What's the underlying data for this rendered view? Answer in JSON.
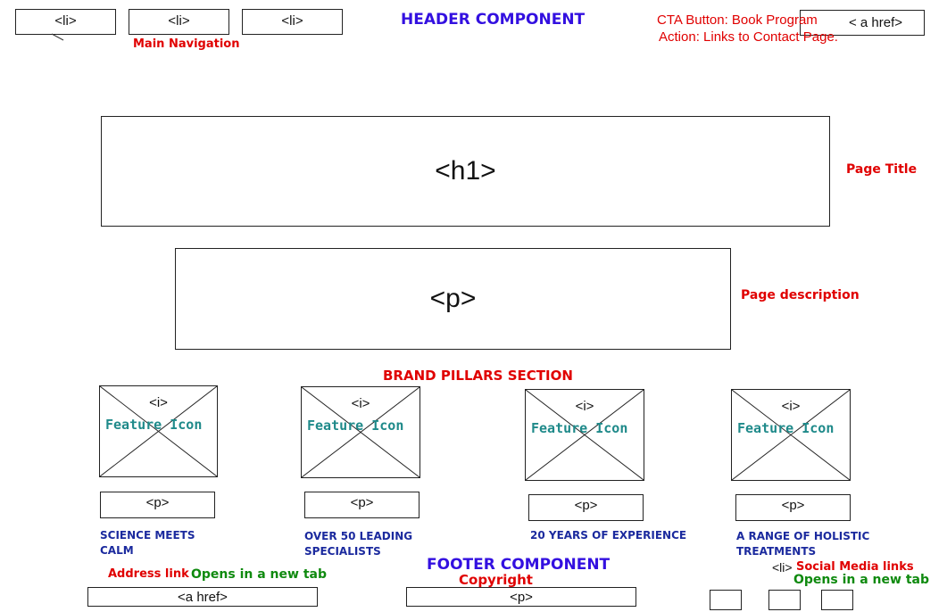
{
  "header": {
    "title": "HEADER COMPONENT",
    "nav_items": [
      "<li>",
      "<li>",
      "<li>"
    ],
    "nav_note": "Main Navigation",
    "cta_note_line1": "CTA Button: Book Program",
    "cta_note_line2": "Action: Links to Contact Page.",
    "cta_tag": "< a href>"
  },
  "title_block": {
    "tag": "<h1>",
    "note": "Page Title"
  },
  "description_block": {
    "tag": "<p>",
    "note": "Page description"
  },
  "pillars": {
    "title": "BRAND PILLARS SECTION",
    "items": [
      {
        "icon_tag": "<i>",
        "icon_label": "Feature Icon",
        "p_tag": "<p>",
        "text": "SCIENCE MEETS CALM"
      },
      {
        "icon_tag": "<i>",
        "icon_label": "Feature Icon",
        "p_tag": "<p>",
        "text": "OVER 50 LEADING SPECIALISTS"
      },
      {
        "icon_tag": "<i>",
        "icon_label": "Feature Icon",
        "p_tag": "<p>",
        "text": "20 YEARS OF EXPERIENCE"
      },
      {
        "icon_tag": "<i>",
        "icon_label": "Feature Icon",
        "p_tag": "<p>",
        "text": "A RANGE OF HOLISTIC TREATMENTS"
      }
    ]
  },
  "footer": {
    "title": "FOOTER COMPONENT",
    "address_note": "Address link",
    "address_new_tab": "Opens in a new tab",
    "address_tag": "<a href>",
    "copyright_note": "Copyright",
    "copyright_tag": "<p>",
    "social_tag": "<li>",
    "social_note": "Social Media links",
    "social_new_tab": "Opens in a new tab"
  }
}
